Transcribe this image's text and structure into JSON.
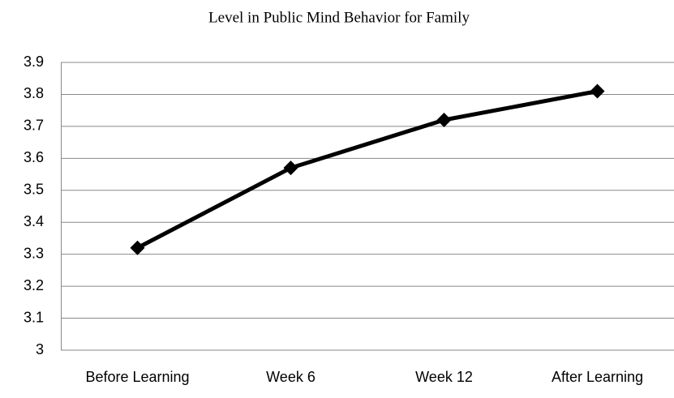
{
  "chart_data": {
    "type": "line",
    "title": "Level in Public Mind Behavior for Family",
    "categories": [
      "Before Learning",
      "Week 6",
      "Week 12",
      "After Learning"
    ],
    "values": [
      3.32,
      3.57,
      3.72,
      3.81
    ],
    "color": "#000000",
    "ylim": [
      3,
      3.9
    ],
    "yticks": [
      3,
      3.1,
      3.2,
      3.3,
      3.4,
      3.5,
      3.6,
      3.7,
      3.8,
      3.9
    ],
    "grid": true
  }
}
